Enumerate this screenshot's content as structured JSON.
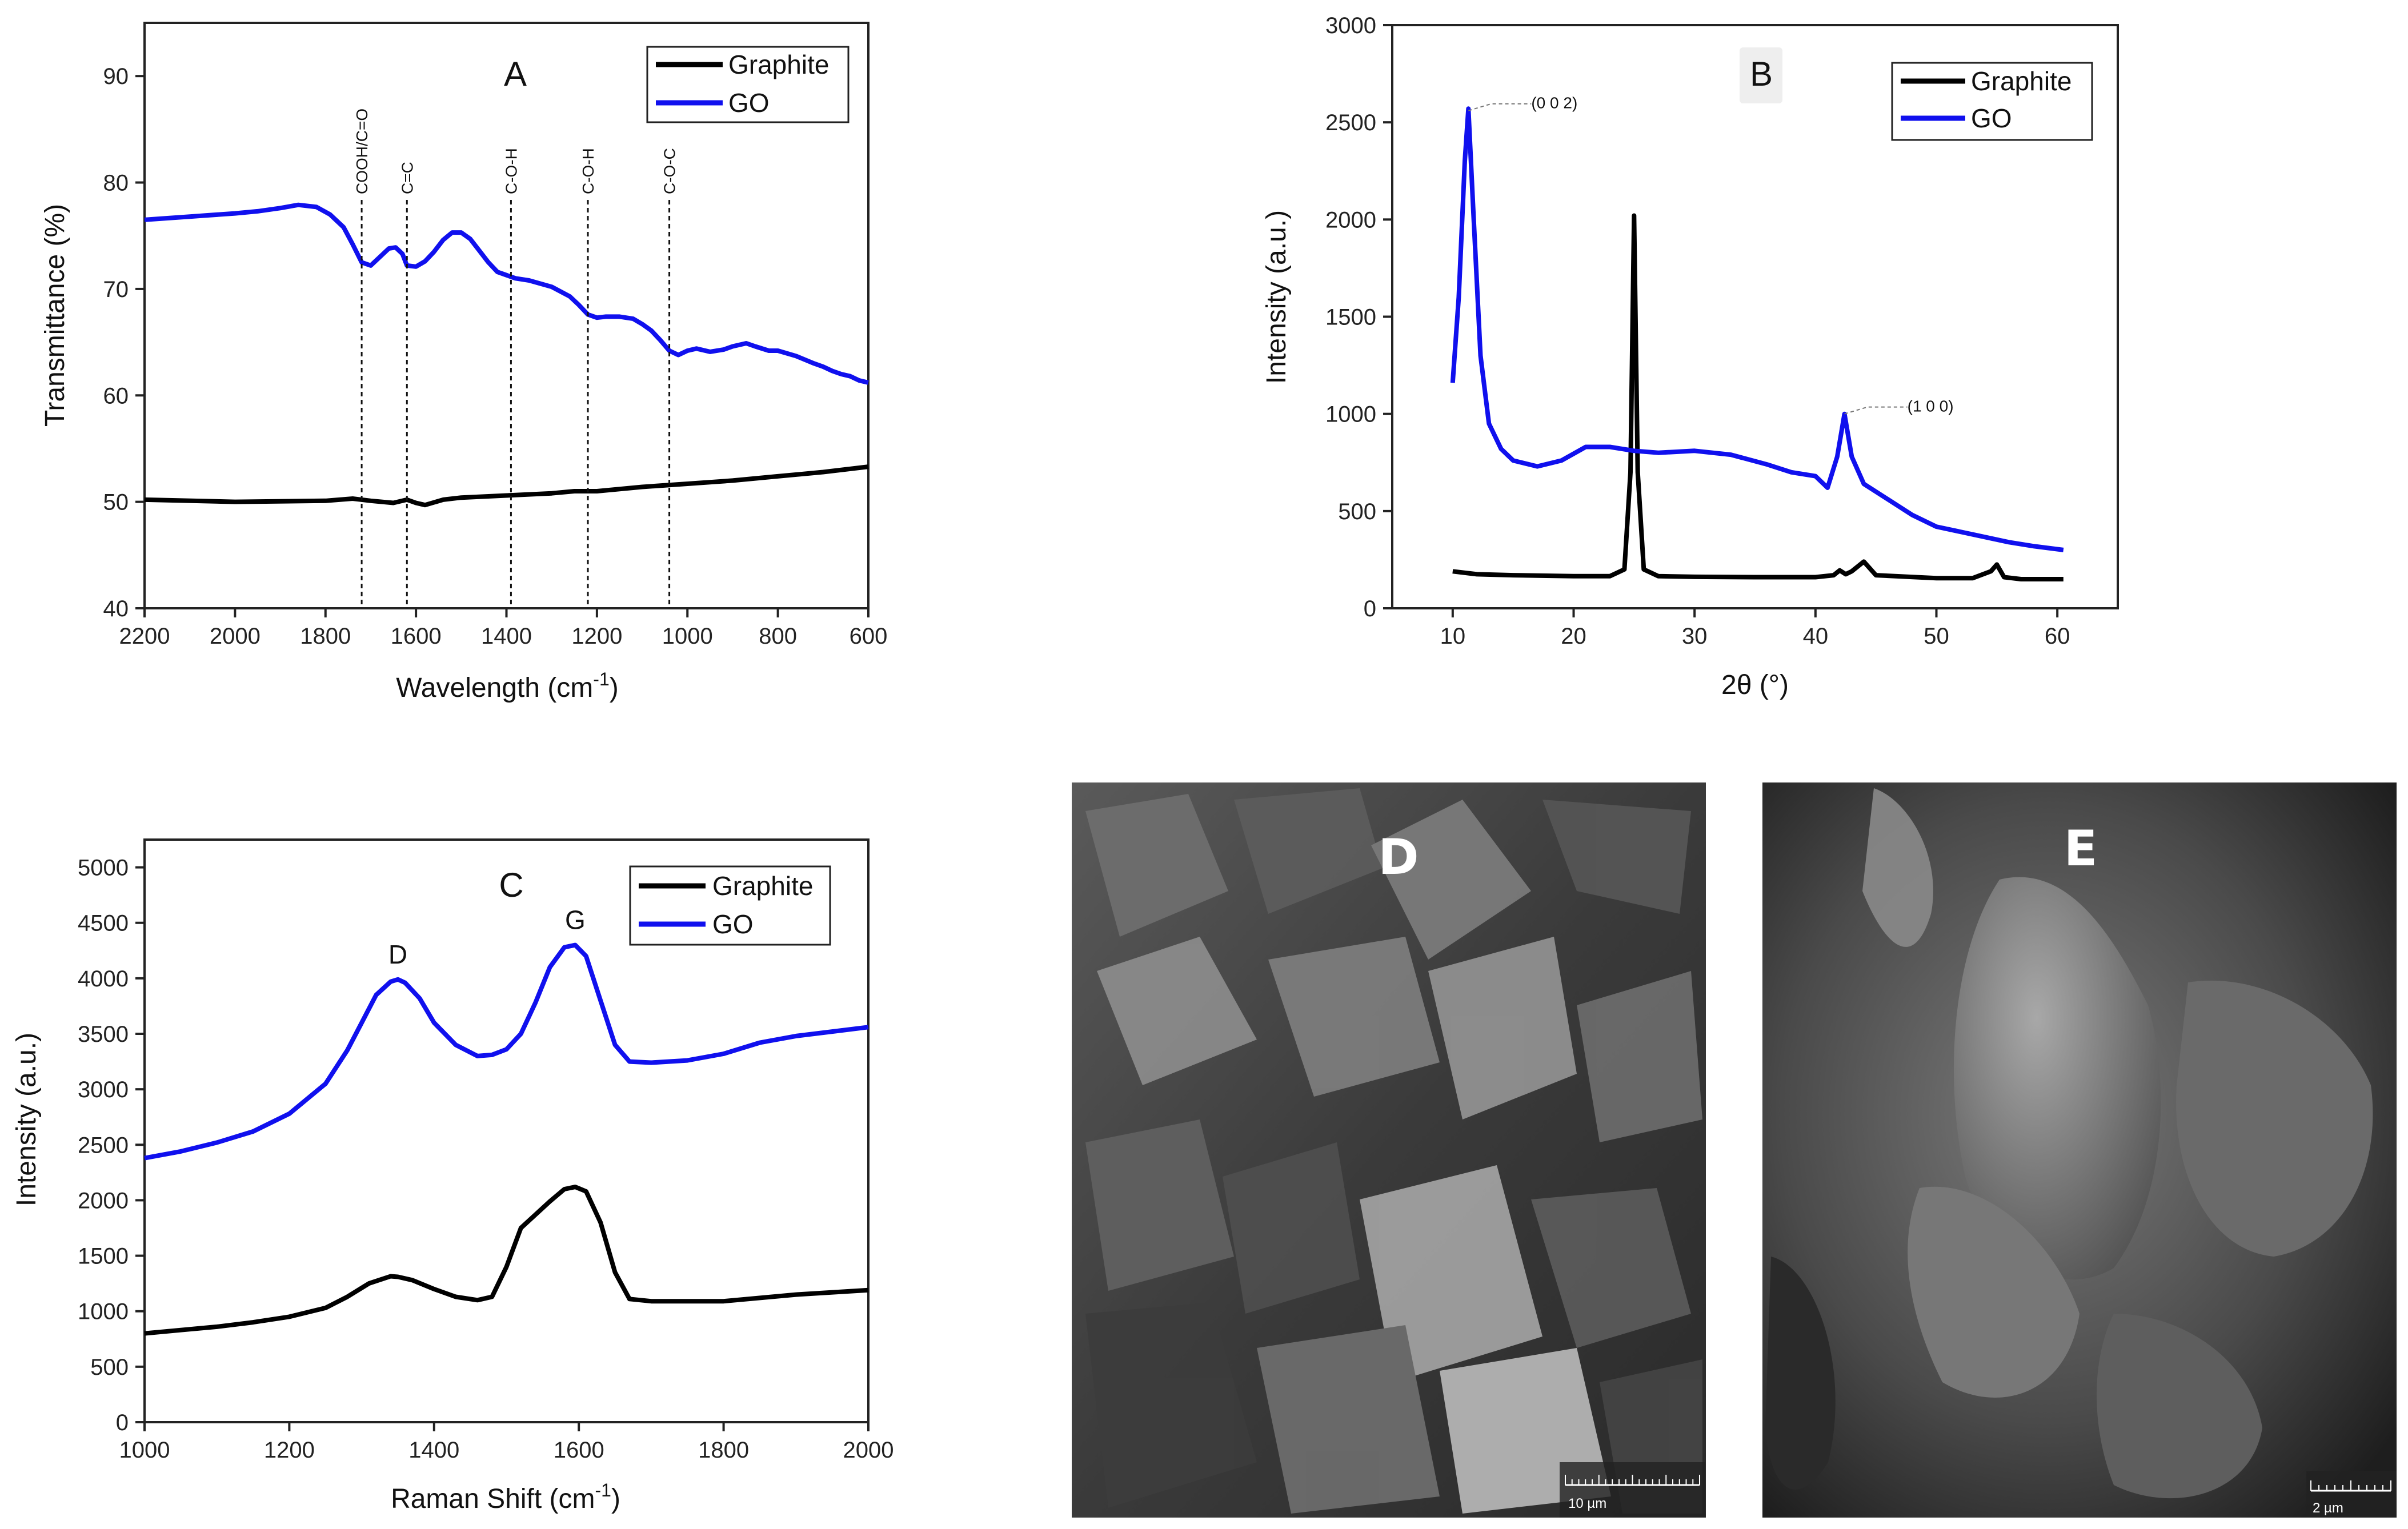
{
  "colors": {
    "graphite": "#000000",
    "go": "#1010ee",
    "box": "#222222"
  },
  "chart_data": [
    {
      "id": "A",
      "type": "line",
      "title": "A",
      "xlabel": "Wavelength (cm",
      "xlabel_sup": "-1",
      "xlabel_end": ")",
      "ylabel": "Transmittance (%)",
      "xlim": [
        2200,
        600
      ],
      "ylim": [
        40,
        95
      ],
      "xticks": [
        2200,
        2000,
        1800,
        1600,
        1400,
        1200,
        1000,
        800,
        600
      ],
      "yticks": [
        40,
        50,
        60,
        70,
        80,
        90
      ],
      "legend": {
        "position": "top-right",
        "entries": [
          "Graphite",
          "GO"
        ]
      },
      "annotations": [
        {
          "label": "COOH/C=O",
          "x": 1720
        },
        {
          "label": "C=C",
          "x": 1620
        },
        {
          "label": "C-O-H",
          "x": 1390
        },
        {
          "label": "C-O-H",
          "x": 1220
        },
        {
          "label": "C-O-C",
          "x": 1040
        }
      ],
      "series": [
        {
          "name": "Graphite",
          "x": [
            2200,
            2000,
            1800,
            1740,
            1700,
            1650,
            1620,
            1600,
            1580,
            1540,
            1500,
            1400,
            1300,
            1250,
            1200,
            1100,
            1000,
            900,
            800,
            700,
            600
          ],
          "y": [
            50.2,
            50,
            50.1,
            50.3,
            50.1,
            49.9,
            50.2,
            49.9,
            49.7,
            50.2,
            50.4,
            50.6,
            50.8,
            51,
            51,
            51.4,
            51.7,
            52,
            52.4,
            52.8,
            53.3
          ]
        },
        {
          "name": "GO",
          "x": [
            2200,
            2100,
            2000,
            1950,
            1900,
            1860,
            1820,
            1790,
            1760,
            1740,
            1720,
            1700,
            1680,
            1660,
            1645,
            1630,
            1620,
            1600,
            1580,
            1560,
            1540,
            1520,
            1500,
            1480,
            1460,
            1440,
            1420,
            1400,
            1380,
            1350,
            1300,
            1260,
            1240,
            1220,
            1200,
            1180,
            1150,
            1120,
            1100,
            1080,
            1060,
            1040,
            1020,
            1000,
            980,
            950,
            920,
            900,
            870,
            850,
            820,
            800,
            760,
            720,
            700,
            680,
            660,
            640,
            620,
            600
          ],
          "y": [
            76.5,
            76.8,
            77.1,
            77.3,
            77.6,
            77.9,
            77.7,
            77,
            75.8,
            74.2,
            72.5,
            72.2,
            73,
            73.8,
            73.9,
            73.3,
            72.2,
            72.1,
            72.6,
            73.5,
            74.6,
            75.3,
            75.3,
            74.7,
            73.6,
            72.5,
            71.6,
            71.3,
            71,
            70.8,
            70.2,
            69.3,
            68.5,
            67.6,
            67.3,
            67.4,
            67.4,
            67.2,
            66.7,
            66.1,
            65.2,
            64.2,
            63.8,
            64.2,
            64.4,
            64.1,
            64.3,
            64.6,
            64.9,
            64.6,
            64.2,
            64.2,
            63.7,
            63,
            62.7,
            62.3,
            62,
            61.8,
            61.4,
            61.2
          ]
        }
      ]
    },
    {
      "id": "B",
      "type": "line",
      "title": "B",
      "xlabel": "2θ (°)",
      "ylabel": "Intensity (a.u.)",
      "xlim": [
        5,
        65
      ],
      "ylim": [
        0,
        3000
      ],
      "xticks": [
        10,
        20,
        30,
        40,
        50,
        60
      ],
      "yticks": [
        0,
        500,
        1000,
        1500,
        2000,
        2500,
        3000
      ],
      "legend": {
        "position": "top-right",
        "entries": [
          "Graphite",
          "GO"
        ]
      },
      "peak_labels": [
        {
          "label": "(0 0 2)",
          "x": 11.3,
          "y": 2560
        },
        {
          "label": "(1 0 0)",
          "x": 42.4,
          "y": 1000
        }
      ],
      "series": [
        {
          "name": "Graphite",
          "x": [
            10,
            12,
            15,
            20,
            23,
            24.2,
            24.7,
            25,
            25.3,
            25.8,
            27,
            30,
            35,
            40,
            41.5,
            42,
            42.5,
            43,
            44,
            45,
            50,
            53,
            54.5,
            55,
            55.6,
            57,
            60.5
          ],
          "y": [
            190,
            175,
            170,
            165,
            165,
            200,
            700,
            2020,
            700,
            200,
            165,
            162,
            160,
            160,
            170,
            195,
            175,
            190,
            240,
            170,
            155,
            155,
            190,
            225,
            160,
            150,
            150
          ]
        },
        {
          "name": "GO",
          "x": [
            10,
            10.5,
            11,
            11.3,
            11.7,
            12.3,
            13,
            14,
            15,
            17,
            19,
            21,
            23,
            25,
            27,
            30,
            33,
            36,
            38,
            40,
            41,
            41.8,
            42.4,
            43,
            44,
            46,
            48,
            50,
            53,
            56,
            58,
            60.5
          ],
          "y": [
            1160,
            1600,
            2300,
            2570,
            2050,
            1300,
            950,
            820,
            760,
            730,
            760,
            830,
            830,
            810,
            800,
            810,
            790,
            740,
            700,
            680,
            620,
            780,
            1000,
            780,
            640,
            560,
            480,
            420,
            380,
            340,
            320,
            300
          ]
        }
      ]
    },
    {
      "id": "C",
      "type": "line",
      "title": "C",
      "xlabel": "Raman Shift (cm",
      "xlabel_sup": "-1",
      "xlabel_end": ")",
      "ylabel": "Intensity (a.u.)",
      "xlim": [
        1000,
        2000
      ],
      "ylim": [
        0,
        5250
      ],
      "xticks": [
        1000,
        1200,
        1400,
        1600,
        1800,
        2000
      ],
      "yticks": [
        0,
        500,
        1000,
        1500,
        2000,
        2500,
        3000,
        3500,
        4000,
        4500,
        5000
      ],
      "legend": {
        "position": "top-right",
        "entries": [
          "Graphite",
          "GO"
        ]
      },
      "peak_labels": [
        {
          "label": "D",
          "x": 1350,
          "y": 3990
        },
        {
          "label": "G",
          "x": 1595,
          "y": 4300
        }
      ],
      "series": [
        {
          "name": "Graphite",
          "x": [
            1000,
            1050,
            1100,
            1150,
            1200,
            1250,
            1280,
            1310,
            1340,
            1350,
            1370,
            1400,
            1430,
            1460,
            1480,
            1500,
            1520,
            1540,
            1560,
            1580,
            1595,
            1610,
            1630,
            1650,
            1670,
            1700,
            1800,
            1900,
            2000
          ],
          "y": [
            800,
            830,
            860,
            900,
            950,
            1030,
            1130,
            1250,
            1315,
            1310,
            1280,
            1200,
            1130,
            1100,
            1130,
            1400,
            1750,
            1870,
            1990,
            2100,
            2120,
            2080,
            1800,
            1350,
            1110,
            1090,
            1090,
            1150,
            1190
          ]
        },
        {
          "name": "GO",
          "x": [
            1000,
            1050,
            1100,
            1150,
            1200,
            1250,
            1280,
            1300,
            1320,
            1340,
            1350,
            1360,
            1380,
            1400,
            1430,
            1460,
            1480,
            1500,
            1520,
            1540,
            1560,
            1580,
            1595,
            1610,
            1630,
            1650,
            1670,
            1700,
            1750,
            1800,
            1850,
            1900,
            1950,
            2000
          ],
          "y": [
            2380,
            2440,
            2520,
            2620,
            2780,
            3050,
            3350,
            3600,
            3850,
            3970,
            3990,
            3960,
            3820,
            3600,
            3400,
            3300,
            3310,
            3360,
            3500,
            3780,
            4100,
            4280,
            4300,
            4200,
            3800,
            3400,
            3250,
            3240,
            3260,
            3320,
            3420,
            3480,
            3520,
            3560
          ]
        }
      ]
    }
  ],
  "sem_images": [
    {
      "id": "D",
      "label": "D",
      "scale_bar": "10 µm"
    },
    {
      "id": "E",
      "label": "E",
      "scale_bar": "2 µm"
    }
  ]
}
